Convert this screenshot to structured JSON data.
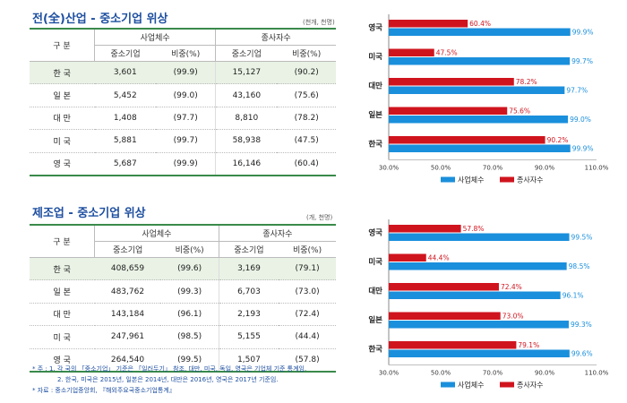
{
  "sections": [
    {
      "title": "전(全)산업 - 중소기업 위상",
      "unit": "(천개, 천명)",
      "table": {
        "row_header": "구  분",
        "group_business": "사업체수",
        "group_employee": "종사자수",
        "col_sme": "중소기업",
        "col_share": "비중(%)",
        "col_sme2": "중소기업",
        "col_share2": "비중(%)",
        "rows": [
          {
            "country": "한  국",
            "biz": "3,601",
            "biz_share": "(99.9)",
            "emp": "15,127",
            "emp_share": "(90.2)"
          },
          {
            "country": "일  본",
            "biz": "5,452",
            "biz_share": "(99.0)",
            "emp": "43,160",
            "emp_share": "(75.6)"
          },
          {
            "country": "대  만",
            "biz": "1,408",
            "biz_share": "(97.7)",
            "emp": "8,810",
            "emp_share": "(78.2)"
          },
          {
            "country": "미  국",
            "biz": "5,881",
            "biz_share": "(99.7)",
            "emp": "58,938",
            "emp_share": "(47.5)"
          },
          {
            "country": "영  국",
            "biz": "5,687",
            "biz_share": "(99.9)",
            "emp": "16,146",
            "emp_share": "(60.4)"
          }
        ]
      }
    },
    {
      "title": "제조업 - 중소기업 위상",
      "unit": "(개, 천명)",
      "table": {
        "row_header": "구  분",
        "group_business": "사업체수",
        "group_employee": "종사자수",
        "col_sme": "중소기업",
        "col_share": "비중(%)",
        "col_sme2": "중소기업",
        "col_share2": "비중(%)",
        "rows": [
          {
            "country": "한  국",
            "biz": "408,659",
            "biz_share": "(99.6)",
            "emp": "3,169",
            "emp_share": "(79.1)"
          },
          {
            "country": "일  본",
            "biz": "483,762",
            "biz_share": "(99.3)",
            "emp": "6,703",
            "emp_share": "(73.0)"
          },
          {
            "country": "대  만",
            "biz": "143,184",
            "biz_share": "(96.1)",
            "emp": "2,193",
            "emp_share": "(72.4)"
          },
          {
            "country": "미  국",
            "biz": "247,961",
            "biz_share": "(98.5)",
            "emp": "5,155",
            "emp_share": "(44.4)"
          },
          {
            "country": "영  국",
            "biz": "264,540",
            "biz_share": "(99.5)",
            "emp": "1,507",
            "emp_share": "(57.8)"
          }
        ]
      }
    }
  ],
  "notes": {
    "line1": "* 주 : 1. 각 국의 「중소기업」 기준은 「일러두기」 참조, 대만, 미국, 독일, 영국은 기업체 기준 통계임.",
    "line2": "2. 한국, 미국은 2015년, 일본은 2014년, 대만은 2016년, 영국은 2017년 기준임.",
    "line3": "* 자료 : 중소기업중앙회, 『해외주요국중소기업통계』"
  },
  "colors": {
    "business": "#1a8fdc",
    "employee": "#d0141e",
    "accent": "#1e4fa0",
    "table_line": "#3a8a4a"
  },
  "chart_data": [
    {
      "type": "bar",
      "orientation": "horizontal",
      "categories": [
        "영국",
        "미국",
        "대만",
        "일본",
        "한국"
      ],
      "series": [
        {
          "name": "종사자수",
          "values": [
            60.4,
            47.5,
            78.2,
            75.6,
            90.2
          ],
          "labels": [
            "60.4%",
            "47.5%",
            "78.2%",
            "75.6%",
            "90.2%"
          ]
        },
        {
          "name": "사업체수",
          "values": [
            99.9,
            99.7,
            97.7,
            99.0,
            99.9
          ],
          "labels": [
            "99.9%",
            "99.7%",
            "97.7%",
            "99.0%",
            "99.9%"
          ]
        }
      ],
      "xlim": [
        30,
        110
      ],
      "xticks": [
        "30.0%",
        "50.0%",
        "70.0%",
        "90.0%",
        "110.0%"
      ],
      "legend": [
        "사업체수",
        "종사자수"
      ],
      "legend_position": "bottom"
    },
    {
      "type": "bar",
      "orientation": "horizontal",
      "categories": [
        "영국",
        "미국",
        "대만",
        "일본",
        "한국"
      ],
      "series": [
        {
          "name": "종사자수",
          "values": [
            57.8,
            44.4,
            72.4,
            73.0,
            79.1
          ],
          "labels": [
            "57.8%",
            "44.4%",
            "72.4%",
            "73.0%",
            "79.1%"
          ]
        },
        {
          "name": "사업체수",
          "values": [
            99.5,
            98.5,
            96.1,
            99.3,
            99.6
          ],
          "labels": [
            "99.5%",
            "98.5%",
            "96.1%",
            "99.3%",
            "99.6%"
          ]
        }
      ],
      "xlim": [
        30,
        110
      ],
      "xticks": [
        "30.0%",
        "50.0%",
        "70.0%",
        "90.0%",
        "110.0%"
      ],
      "legend": [
        "사업체수",
        "종사자수"
      ],
      "legend_position": "bottom"
    }
  ]
}
